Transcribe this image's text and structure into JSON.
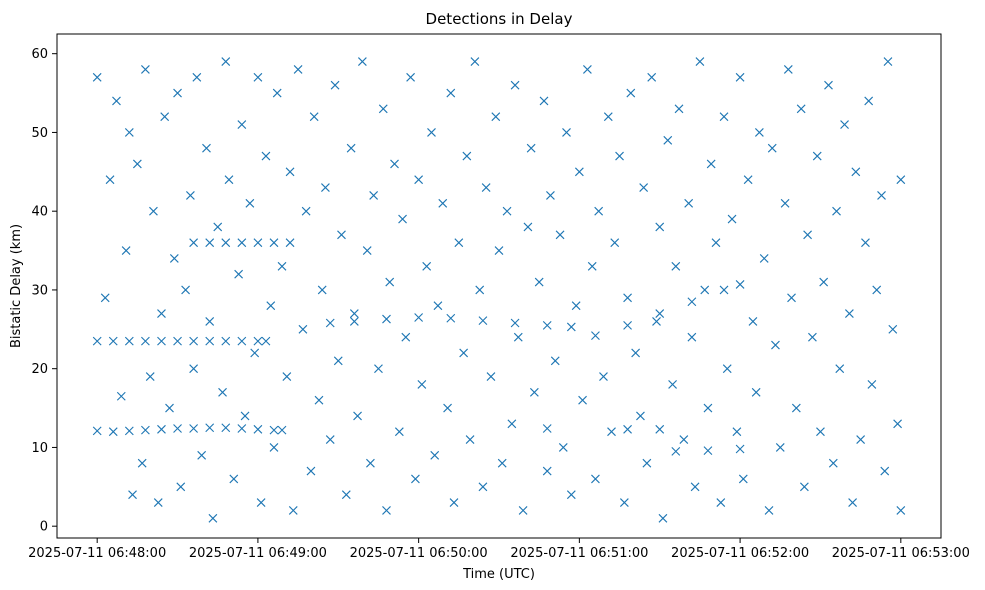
{
  "chart_data": {
    "type": "scatter",
    "title": "Detections in Delay",
    "xlabel": "Time (UTC)",
    "ylabel": "Bistatic Delay (km)",
    "marker": "x",
    "color": "#1f77b4",
    "xlim": [
      -0.25,
      5.25
    ],
    "ylim": [
      -1.5,
      62.5
    ],
    "x_unit": "minutes since 2025-07-11 06:48:00",
    "xticks": [
      0,
      1,
      2,
      3,
      4,
      5
    ],
    "xtick_labels": [
      "2025-07-11 06:48:00",
      "2025-07-11 06:49:00",
      "2025-07-11 06:50:00",
      "2025-07-11 06:51:00",
      "2025-07-11 06:52:00",
      "2025-07-11 06:53:00"
    ],
    "yticks": [
      0,
      10,
      20,
      30,
      40,
      50,
      60
    ],
    "ytick_labels": [
      "0",
      "10",
      "20",
      "30",
      "40",
      "50",
      "60"
    ],
    "series": [
      {
        "name": "Detections",
        "points": [
          [
            0.0,
            12.1
          ],
          [
            0.1,
            12.0
          ],
          [
            0.2,
            12.1
          ],
          [
            0.3,
            12.2
          ],
          [
            0.4,
            12.3
          ],
          [
            0.5,
            12.4
          ],
          [
            0.6,
            12.4
          ],
          [
            0.7,
            12.5
          ],
          [
            0.8,
            12.5
          ],
          [
            0.9,
            12.4
          ],
          [
            1.0,
            12.3
          ],
          [
            1.1,
            12.2
          ],
          [
            1.15,
            12.2
          ],
          [
            0.0,
            23.5
          ],
          [
            0.1,
            23.5
          ],
          [
            0.2,
            23.5
          ],
          [
            0.3,
            23.5
          ],
          [
            0.4,
            23.5
          ],
          [
            0.5,
            23.5
          ],
          [
            0.6,
            23.5
          ],
          [
            0.7,
            23.5
          ],
          [
            0.8,
            23.5
          ],
          [
            0.9,
            23.5
          ],
          [
            1.0,
            23.5
          ],
          [
            1.05,
            23.5
          ],
          [
            0.6,
            36.0
          ],
          [
            0.7,
            36.0
          ],
          [
            0.8,
            36.0
          ],
          [
            0.9,
            36.0
          ],
          [
            1.0,
            36.0
          ],
          [
            1.1,
            36.0
          ],
          [
            1.2,
            36.0
          ],
          [
            1.45,
            25.8
          ],
          [
            1.6,
            26.0
          ],
          [
            1.8,
            26.3
          ],
          [
            2.0,
            26.5
          ],
          [
            2.2,
            26.4
          ],
          [
            2.4,
            26.1
          ],
          [
            2.6,
            25.8
          ],
          [
            2.8,
            25.5
          ],
          [
            2.95,
            25.3
          ],
          [
            3.1,
            24.2
          ],
          [
            3.3,
            25.5
          ],
          [
            3.5,
            27.0
          ],
          [
            3.7,
            28.5
          ],
          [
            3.9,
            30.0
          ],
          [
            4.0,
            30.7
          ],
          [
            2.8,
            12.4
          ],
          [
            3.3,
            12.3
          ],
          [
            3.5,
            12.3
          ],
          [
            3.6,
            9.5
          ],
          [
            3.8,
            9.6
          ],
          [
            4.0,
            9.8
          ],
          [
            0.0,
            57.0
          ],
          [
            0.05,
            29.0
          ],
          [
            0.08,
            44.0
          ],
          [
            0.12,
            54.0
          ],
          [
            0.15,
            16.5
          ],
          [
            0.18,
            35.0
          ],
          [
            0.2,
            50.0
          ],
          [
            0.22,
            4.0
          ],
          [
            0.25,
            46.0
          ],
          [
            0.28,
            8.0
          ],
          [
            0.3,
            58.0
          ],
          [
            0.33,
            19.0
          ],
          [
            0.35,
            40.0
          ],
          [
            0.38,
            3.0
          ],
          [
            0.4,
            27.0
          ],
          [
            0.42,
            52.0
          ],
          [
            0.45,
            15.0
          ],
          [
            0.48,
            34.0
          ],
          [
            0.5,
            55.0
          ],
          [
            0.52,
            5.0
          ],
          [
            0.55,
            30.0
          ],
          [
            0.58,
            42.0
          ],
          [
            0.6,
            20.0
          ],
          [
            0.62,
            57.0
          ],
          [
            0.65,
            9.0
          ],
          [
            0.68,
            48.0
          ],
          [
            0.7,
            26.0
          ],
          [
            0.72,
            1.0
          ],
          [
            0.75,
            38.0
          ],
          [
            0.78,
            17.0
          ],
          [
            0.8,
            59.0
          ],
          [
            0.82,
            44.0
          ],
          [
            0.85,
            6.0
          ],
          [
            0.88,
            32.0
          ],
          [
            0.9,
            51.0
          ],
          [
            0.92,
            14.0
          ],
          [
            0.95,
            41.0
          ],
          [
            0.98,
            22.0
          ],
          [
            1.0,
            57.0
          ],
          [
            1.02,
            3.0
          ],
          [
            1.05,
            47.0
          ],
          [
            1.08,
            28.0
          ],
          [
            1.1,
            10.0
          ],
          [
            1.12,
            55.0
          ],
          [
            1.15,
            33.0
          ],
          [
            1.18,
            19.0
          ],
          [
            1.2,
            45.0
          ],
          [
            1.22,
            2.0
          ],
          [
            1.25,
            58.0
          ],
          [
            1.28,
            25.0
          ],
          [
            1.3,
            40.0
          ],
          [
            1.33,
            7.0
          ],
          [
            1.35,
            52.0
          ],
          [
            1.38,
            16.0
          ],
          [
            1.4,
            30.0
          ],
          [
            1.42,
            43.0
          ],
          [
            1.45,
            11.0
          ],
          [
            1.48,
            56.0
          ],
          [
            1.5,
            21.0
          ],
          [
            1.52,
            37.0
          ],
          [
            1.55,
            4.0
          ],
          [
            1.58,
            48.0
          ],
          [
            1.6,
            27.0
          ],
          [
            1.62,
            14.0
          ],
          [
            1.65,
            59.0
          ],
          [
            1.68,
            35.0
          ],
          [
            1.7,
            8.0
          ],
          [
            1.72,
            42.0
          ],
          [
            1.75,
            20.0
          ],
          [
            1.78,
            53.0
          ],
          [
            1.8,
            2.0
          ],
          [
            1.82,
            31.0
          ],
          [
            1.85,
            46.0
          ],
          [
            1.88,
            12.0
          ],
          [
            1.9,
            39.0
          ],
          [
            1.92,
            24.0
          ],
          [
            1.95,
            57.0
          ],
          [
            1.98,
            6.0
          ],
          [
            2.0,
            44.0
          ],
          [
            2.02,
            18.0
          ],
          [
            2.05,
            33.0
          ],
          [
            2.08,
            50.0
          ],
          [
            2.1,
            9.0
          ],
          [
            2.12,
            28.0
          ],
          [
            2.15,
            41.0
          ],
          [
            2.18,
            15.0
          ],
          [
            2.2,
            55.0
          ],
          [
            2.22,
            3.0
          ],
          [
            2.25,
            36.0
          ],
          [
            2.28,
            22.0
          ],
          [
            2.3,
            47.0
          ],
          [
            2.32,
            11.0
          ],
          [
            2.35,
            59.0
          ],
          [
            2.38,
            30.0
          ],
          [
            2.4,
            5.0
          ],
          [
            2.42,
            43.0
          ],
          [
            2.45,
            19.0
          ],
          [
            2.48,
            52.0
          ],
          [
            2.5,
            35.0
          ],
          [
            2.52,
            8.0
          ],
          [
            2.55,
            40.0
          ],
          [
            2.58,
            13.0
          ],
          [
            2.6,
            56.0
          ],
          [
            2.62,
            24.0
          ],
          [
            2.65,
            2.0
          ],
          [
            2.68,
            38.0
          ],
          [
            2.7,
            48.0
          ],
          [
            2.72,
            17.0
          ],
          [
            2.75,
            31.0
          ],
          [
            2.78,
            54.0
          ],
          [
            2.8,
            7.0
          ],
          [
            2.82,
            42.0
          ],
          [
            2.85,
            21.0
          ],
          [
            2.88,
            37.0
          ],
          [
            2.9,
            10.0
          ],
          [
            2.92,
            50.0
          ],
          [
            2.95,
            4.0
          ],
          [
            2.98,
            28.0
          ],
          [
            3.0,
            45.0
          ],
          [
            3.02,
            16.0
          ],
          [
            3.05,
            58.0
          ],
          [
            3.08,
            33.0
          ],
          [
            3.1,
            6.0
          ],
          [
            3.12,
            40.0
          ],
          [
            3.15,
            19.0
          ],
          [
            3.18,
            52.0
          ],
          [
            3.2,
            12.0
          ],
          [
            3.22,
            36.0
          ],
          [
            3.25,
            47.0
          ],
          [
            3.28,
            3.0
          ],
          [
            3.3,
            29.0
          ],
          [
            3.32,
            55.0
          ],
          [
            3.35,
            22.0
          ],
          [
            3.38,
            14.0
          ],
          [
            3.4,
            43.0
          ],
          [
            3.42,
            8.0
          ],
          [
            3.45,
            57.0
          ],
          [
            3.48,
            26.0
          ],
          [
            3.5,
            38.0
          ],
          [
            3.52,
            1.0
          ],
          [
            3.55,
            49.0
          ],
          [
            3.58,
            18.0
          ],
          [
            3.6,
            33.0
          ],
          [
            3.62,
            53.0
          ],
          [
            3.65,
            11.0
          ],
          [
            3.68,
            41.0
          ],
          [
            3.7,
            24.0
          ],
          [
            3.72,
            5.0
          ],
          [
            3.75,
            59.0
          ],
          [
            3.78,
            30.0
          ],
          [
            3.8,
            15.0
          ],
          [
            3.82,
            46.0
          ],
          [
            3.85,
            36.0
          ],
          [
            3.88,
            3.0
          ],
          [
            3.9,
            52.0
          ],
          [
            3.92,
            20.0
          ],
          [
            3.95,
            39.0
          ],
          [
            3.98,
            12.0
          ],
          [
            4.0,
            57.0
          ],
          [
            4.02,
            6.0
          ],
          [
            4.05,
            44.0
          ],
          [
            4.08,
            26.0
          ],
          [
            4.1,
            17.0
          ],
          [
            4.12,
            50.0
          ],
          [
            4.15,
            34.0
          ],
          [
            4.18,
            2.0
          ],
          [
            4.2,
            48.0
          ],
          [
            4.22,
            23.0
          ],
          [
            4.25,
            10.0
          ],
          [
            4.28,
            41.0
          ],
          [
            4.3,
            58.0
          ],
          [
            4.32,
            29.0
          ],
          [
            4.35,
            15.0
          ],
          [
            4.38,
            53.0
          ],
          [
            4.4,
            5.0
          ],
          [
            4.42,
            37.0
          ],
          [
            4.45,
            24.0
          ],
          [
            4.48,
            47.0
          ],
          [
            4.5,
            12.0
          ],
          [
            4.52,
            31.0
          ],
          [
            4.55,
            56.0
          ],
          [
            4.58,
            8.0
          ],
          [
            4.6,
            40.0
          ],
          [
            4.62,
            20.0
          ],
          [
            4.65,
            51.0
          ],
          [
            4.68,
            27.0
          ],
          [
            4.7,
            3.0
          ],
          [
            4.72,
            45.0
          ],
          [
            4.75,
            11.0
          ],
          [
            4.78,
            36.0
          ],
          [
            4.8,
            54.0
          ],
          [
            4.82,
            18.0
          ],
          [
            4.85,
            30.0
          ],
          [
            4.88,
            42.0
          ],
          [
            4.9,
            7.0
          ],
          [
            4.92,
            59.0
          ],
          [
            4.95,
            25.0
          ],
          [
            4.98,
            13.0
          ],
          [
            5.0,
            44.0
          ],
          [
            5.0,
            2.0
          ]
        ]
      }
    ]
  }
}
